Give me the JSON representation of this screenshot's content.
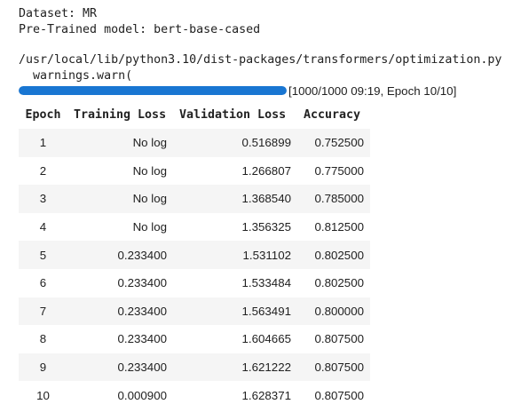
{
  "output": {
    "dataset_line": "Dataset: MR",
    "model_line": "Pre-Trained model: bert-base-cased",
    "warning_path": "/usr/local/lib/python3.10/dist-packages/transformers/optimization.py",
    "warning_call": "  warnings.warn("
  },
  "progress": {
    "fraction": 1.0,
    "text": "[1000/1000 09:19, Epoch 10/10]",
    "color": "#1976d2"
  },
  "table": {
    "headers": [
      "Epoch",
      "Training Loss",
      "Validation Loss",
      "Accuracy"
    ],
    "rows": [
      [
        "1",
        "No log",
        "0.516899",
        "0.752500"
      ],
      [
        "2",
        "No log",
        "1.266807",
        "0.775000"
      ],
      [
        "3",
        "No log",
        "1.368540",
        "0.785000"
      ],
      [
        "4",
        "No log",
        "1.356325",
        "0.812500"
      ],
      [
        "5",
        "0.233400",
        "1.531102",
        "0.802500"
      ],
      [
        "6",
        "0.233400",
        "1.533484",
        "0.802500"
      ],
      [
        "7",
        "0.233400",
        "1.563491",
        "0.800000"
      ],
      [
        "8",
        "0.233400",
        "1.604665",
        "0.807500"
      ],
      [
        "9",
        "0.233400",
        "1.621222",
        "0.807500"
      ],
      [
        "10",
        "0.000900",
        "1.628371",
        "0.807500"
      ]
    ]
  }
}
